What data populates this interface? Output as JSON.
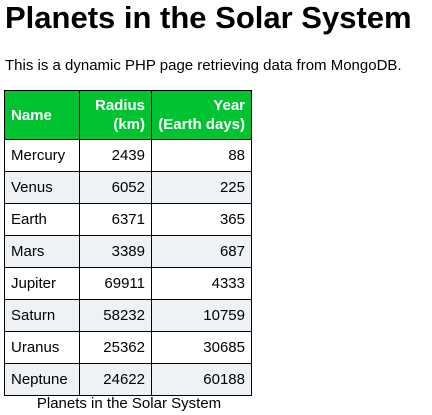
{
  "page": {
    "title": "Planets in the Solar System",
    "intro": "This is a dynamic PHP page retrieving data from MongoDB."
  },
  "table": {
    "header_color": "#00c331",
    "columns": [
      {
        "line1": "Name",
        "line2": ""
      },
      {
        "line1": "Radius",
        "line2": "(km)"
      },
      {
        "line1": "Year",
        "line2": "(Earth days)"
      }
    ],
    "rows": [
      {
        "name": "Mercury",
        "radius": "2439",
        "year": "88"
      },
      {
        "name": "Venus",
        "radius": "6052",
        "year": "225"
      },
      {
        "name": "Earth",
        "radius": "6371",
        "year": "365"
      },
      {
        "name": "Mars",
        "radius": "3389",
        "year": "687"
      },
      {
        "name": "Jupiter",
        "radius": "69911",
        "year": "4333"
      },
      {
        "name": "Saturn",
        "radius": "58232",
        "year": "10759"
      },
      {
        "name": "Uranus",
        "radius": "25362",
        "year": "30685"
      },
      {
        "name": "Neptune",
        "radius": "24622",
        "year": "60188"
      }
    ],
    "caption": "Planets in the Solar System"
  }
}
